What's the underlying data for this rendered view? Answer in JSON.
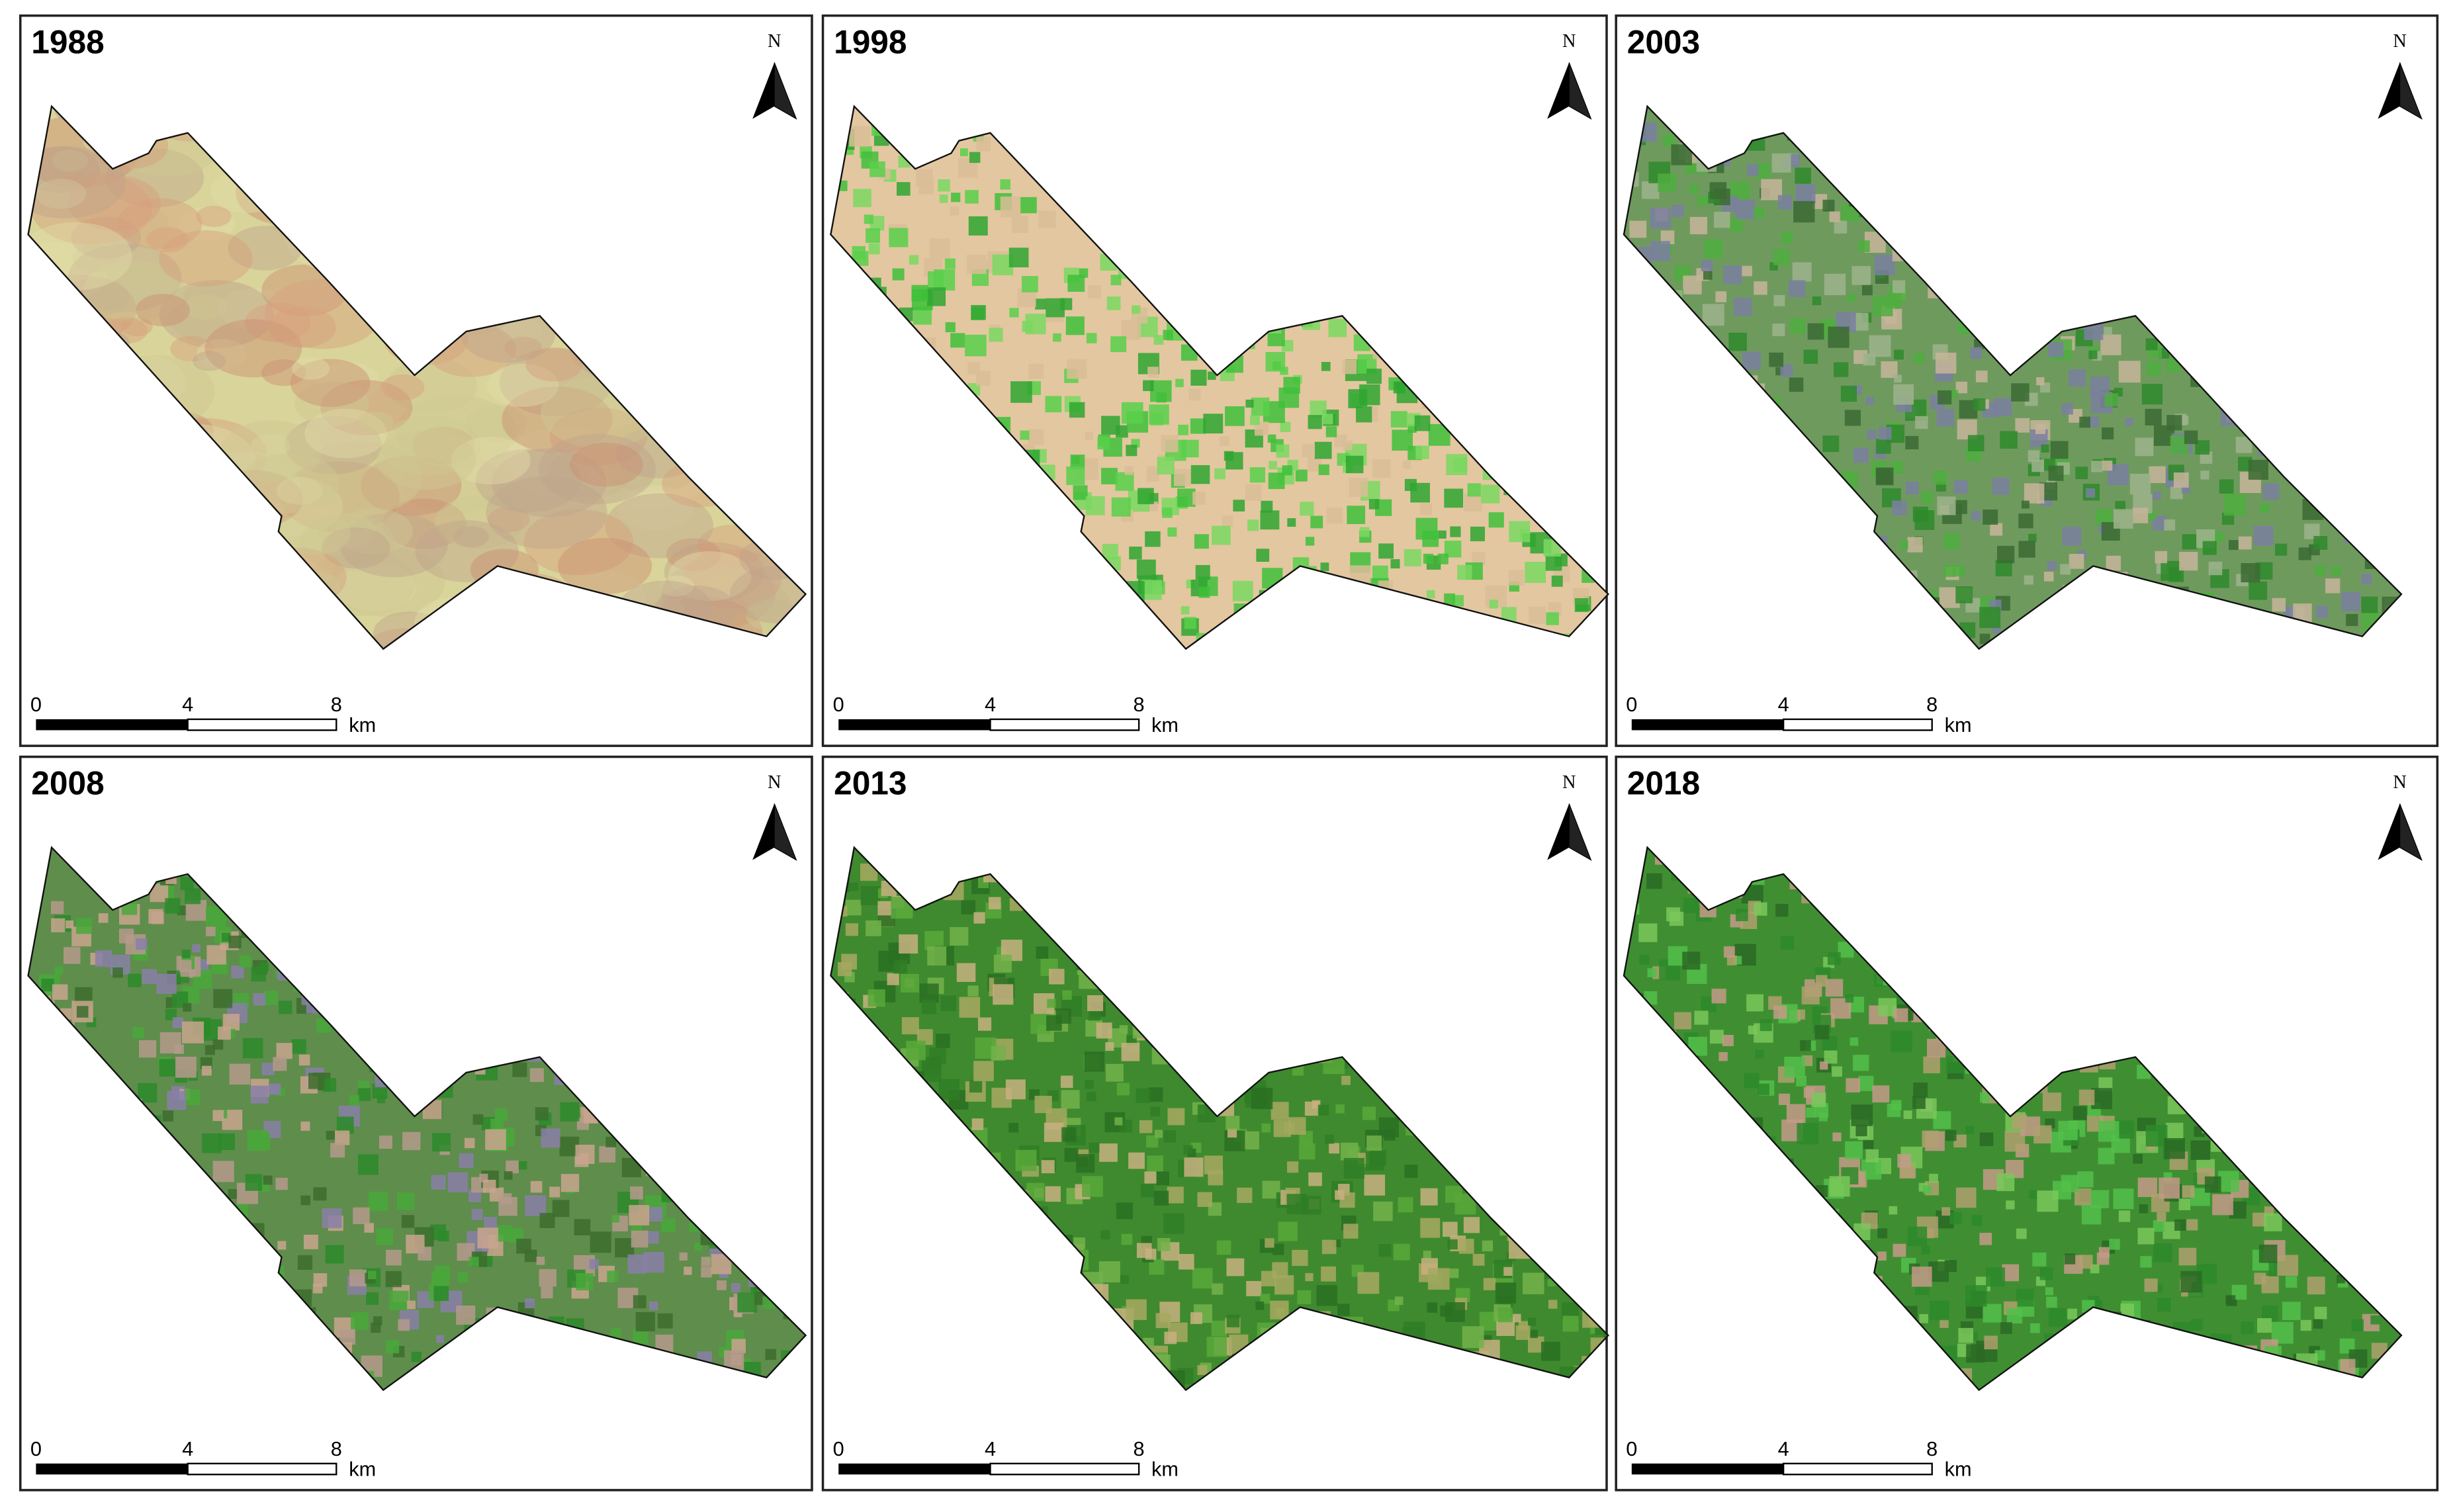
{
  "panels": [
    {
      "title": "1988"
    },
    {
      "title": "1998"
    },
    {
      "title": "2003"
    },
    {
      "title": "2008"
    },
    {
      "title": "2013"
    },
    {
      "title": "2018"
    }
  ],
  "north": "N",
  "scale": {
    "labels": [
      "0",
      "4",
      "8"
    ],
    "unit": "km"
  }
}
